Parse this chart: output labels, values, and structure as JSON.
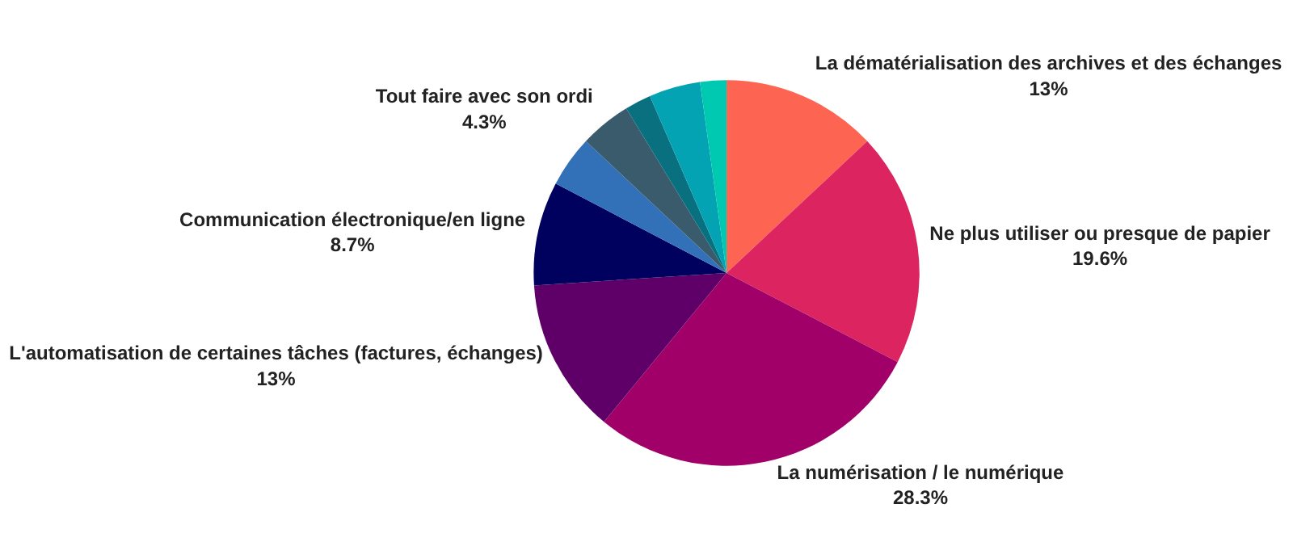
{
  "chart_data": {
    "type": "pie",
    "categories": [
      "La dématérialisation des archives et des échanges",
      "Ne plus utiliser ou presque de papier",
      "La numérisation / le numérique",
      "L'automatisation de certaines tâches (factures, échanges)",
      "Communication électronique/en ligne",
      null,
      "Tout faire avec son ordi",
      null,
      null,
      null
    ],
    "values": [
      13,
      19.6,
      28.3,
      13,
      8.7,
      4.3,
      4.3,
      2.2,
      4.3,
      2.2
    ],
    "value_labels": [
      "13%",
      "19.6%",
      "28.3%",
      "13%",
      "8.7%",
      null,
      "4.3%",
      null,
      null,
      null
    ],
    "colors": [
      "#fd6452",
      "#dc2560",
      "#a10069",
      "#5e0068",
      "#00005e",
      "#3271b8",
      "#395b6b",
      "#09707f",
      "#04a3b3",
      "#00c9b1"
    ]
  }
}
